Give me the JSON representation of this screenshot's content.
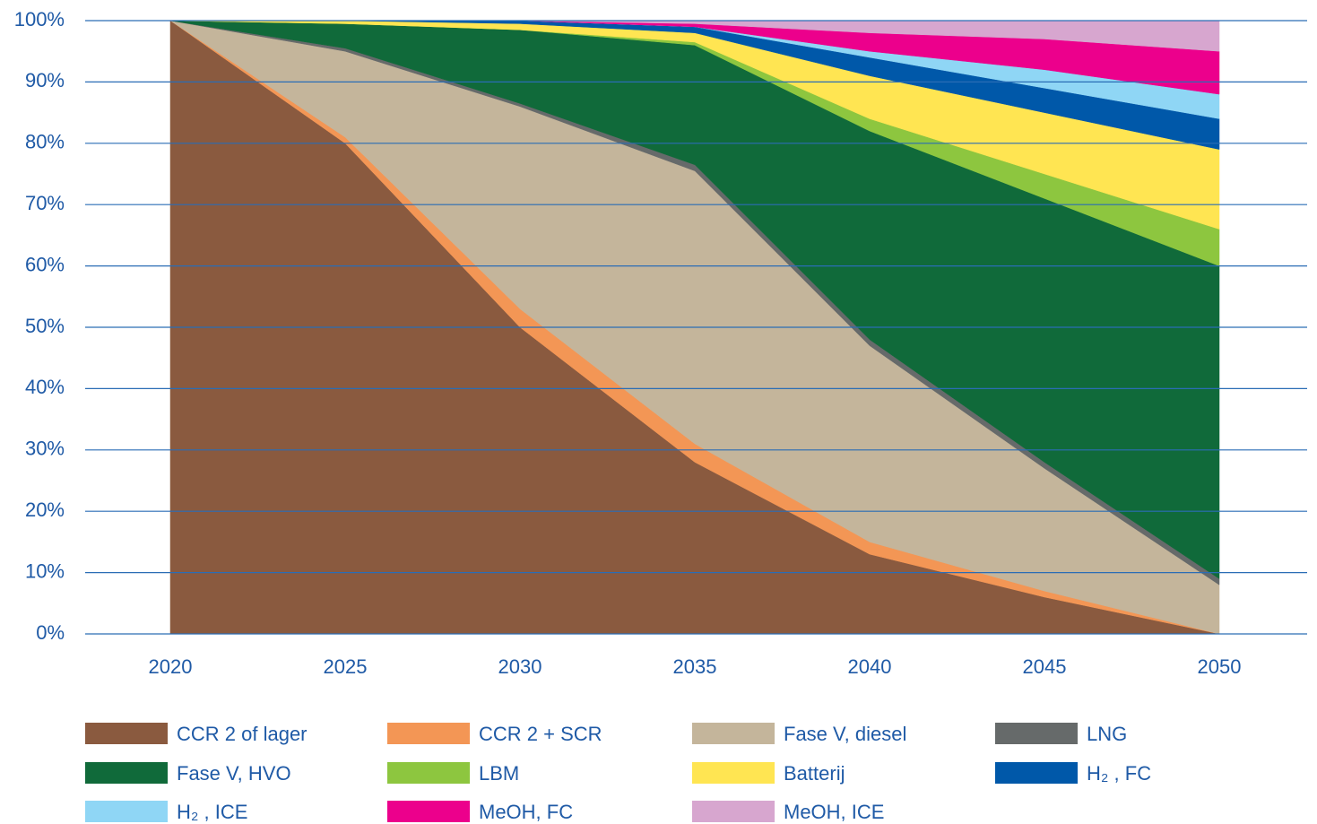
{
  "chart_data": {
    "type": "stacked_area",
    "x": [
      2020,
      2025,
      2030,
      2035,
      2040,
      2045,
      2050
    ],
    "xlim": [
      2020,
      2050
    ],
    "xticks": [
      2020,
      2025,
      2030,
      2035,
      2040,
      2045,
      2050
    ],
    "ylim": [
      0,
      100
    ],
    "yticks": [
      {
        "value": 0,
        "label": "0%"
      },
      {
        "value": 10,
        "label": "10%"
      },
      {
        "value": 20,
        "label": "20%"
      },
      {
        "value": 30,
        "label": "30%"
      },
      {
        "value": 40,
        "label": "40%"
      },
      {
        "value": 50,
        "label": "50%"
      },
      {
        "value": 60,
        "label": "60%"
      },
      {
        "value": 70,
        "label": "70%"
      },
      {
        "value": 80,
        "label": "80%"
      },
      {
        "value": 90,
        "label": "90%"
      },
      {
        "value": 100,
        "label": "100%"
      }
    ],
    "grid": true,
    "legend": "bottom",
    "series": [
      {
        "name": "CCR 2 of lager",
        "color": "#8a5a3f",
        "values": [
          100,
          80,
          50,
          28,
          13,
          6,
          0
        ]
      },
      {
        "name": "CCR 2 + SCR",
        "color": "#f39655",
        "values": [
          0,
          1,
          3,
          3,
          2,
          1,
          0
        ]
      },
      {
        "name": "Fase V, diesel",
        "color": "#c4b59b",
        "values": [
          0,
          14,
          33,
          44.5,
          32,
          20,
          8
        ]
      },
      {
        "name": "LNG",
        "color": "#666a6a",
        "values": [
          0,
          0.5,
          0.5,
          1,
          1,
          1,
          1
        ]
      },
      {
        "name": "Fase V, HVO",
        "color": "#106a3a",
        "values": [
          0,
          4,
          12,
          19.5,
          34,
          43,
          51
        ]
      },
      {
        "name": "LBM",
        "color": "#8dc63f",
        "values": [
          0,
          0,
          0,
          0.5,
          2,
          4,
          6
        ]
      },
      {
        "name": "Batterij",
        "color": "#ffe552",
        "values": [
          0,
          0.5,
          1,
          1.5,
          7,
          10,
          13
        ]
      },
      {
        "name": "H₂ , FC",
        "color": "#0058a9",
        "values": [
          0,
          0,
          0.5,
          1,
          3,
          4,
          5
        ]
      },
      {
        "name": "H₂ , ICE",
        "color": "#8fd6f5",
        "values": [
          0,
          0,
          0,
          0,
          1,
          3,
          4
        ]
      },
      {
        "name": "MeOH, FC",
        "color": "#ec008c",
        "values": [
          0,
          0,
          0,
          0.5,
          3,
          5,
          7
        ]
      },
      {
        "name": "MeOH, ICE",
        "color": "#d7a6cf",
        "values": [
          0,
          0,
          0,
          0.5,
          2,
          3,
          5
        ]
      }
    ]
  }
}
